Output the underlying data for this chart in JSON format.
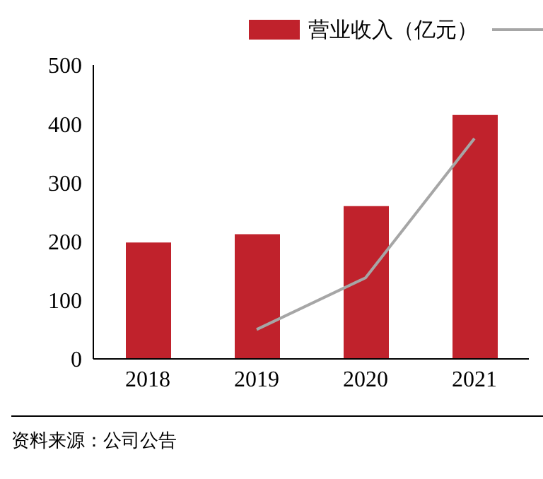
{
  "chart_data": {
    "type": "bar",
    "categories": [
      "2018",
      "2019",
      "2020",
      "2021"
    ],
    "series": [
      {
        "name": "营业收入（亿元）",
        "color": "#c0222c",
        "values": [
          198,
          212,
          260,
          415
        ]
      },
      {
        "type": "line",
        "color": "#a6a6a6",
        "values": [
          null,
          50,
          138,
          375
        ]
      }
    ],
    "ylim": [
      0,
      500
    ],
    "yticks": [
      0,
      100,
      200,
      300,
      400,
      500
    ],
    "legend": "top right",
    "marker": "none",
    "annotations": [
      "资料来源：公司公告"
    ]
  }
}
